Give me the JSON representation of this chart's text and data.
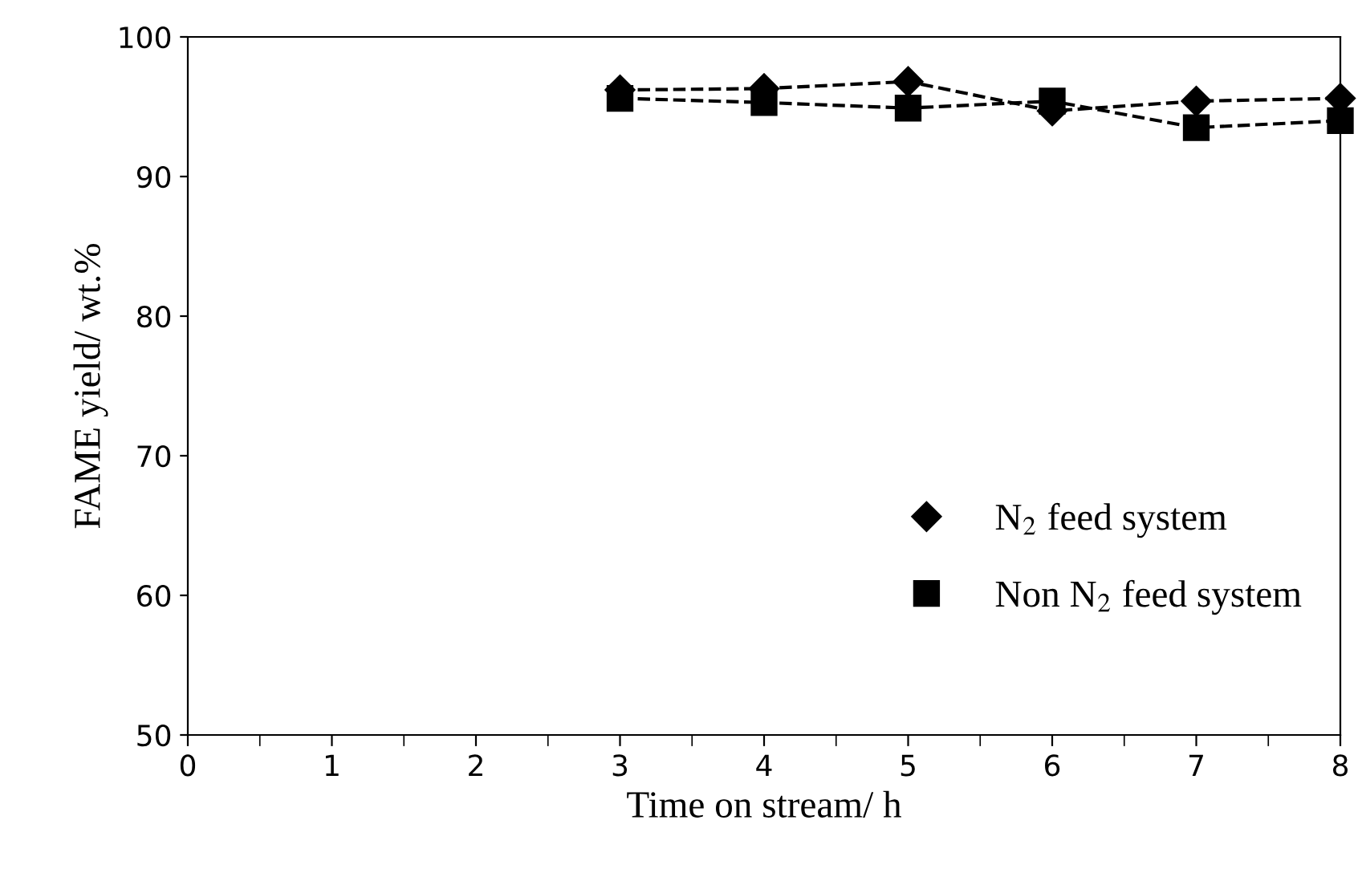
{
  "chart_data": {
    "type": "line",
    "xlabel": "Time on stream/ h",
    "ylabel": "FAME yield/ wt.%",
    "x": [
      3,
      4,
      5,
      6,
      7,
      8
    ],
    "series": [
      {
        "name": "N$_{2}$ feed system",
        "color": "#000000",
        "marker": "diamond",
        "values": [
          96.2,
          96.3,
          96.8,
          94.7,
          95.4,
          95.6
        ]
      },
      {
        "name": "Non N$_{2}$ feed system",
        "color": "#000000",
        "marker": "square",
        "values": [
          95.6,
          95.3,
          94.9,
          95.4,
          93.5,
          94.0
        ]
      }
    ],
    "line_style": "dashed",
    "xlim": [
      0,
      8
    ],
    "xticks": [
      0,
      1,
      2,
      3,
      4,
      5,
      6,
      7,
      8
    ],
    "ylim": [
      50,
      100
    ],
    "yticks": [
      50,
      60,
      70,
      80,
      90,
      100
    ],
    "grid": false,
    "legend": "bottom right"
  }
}
